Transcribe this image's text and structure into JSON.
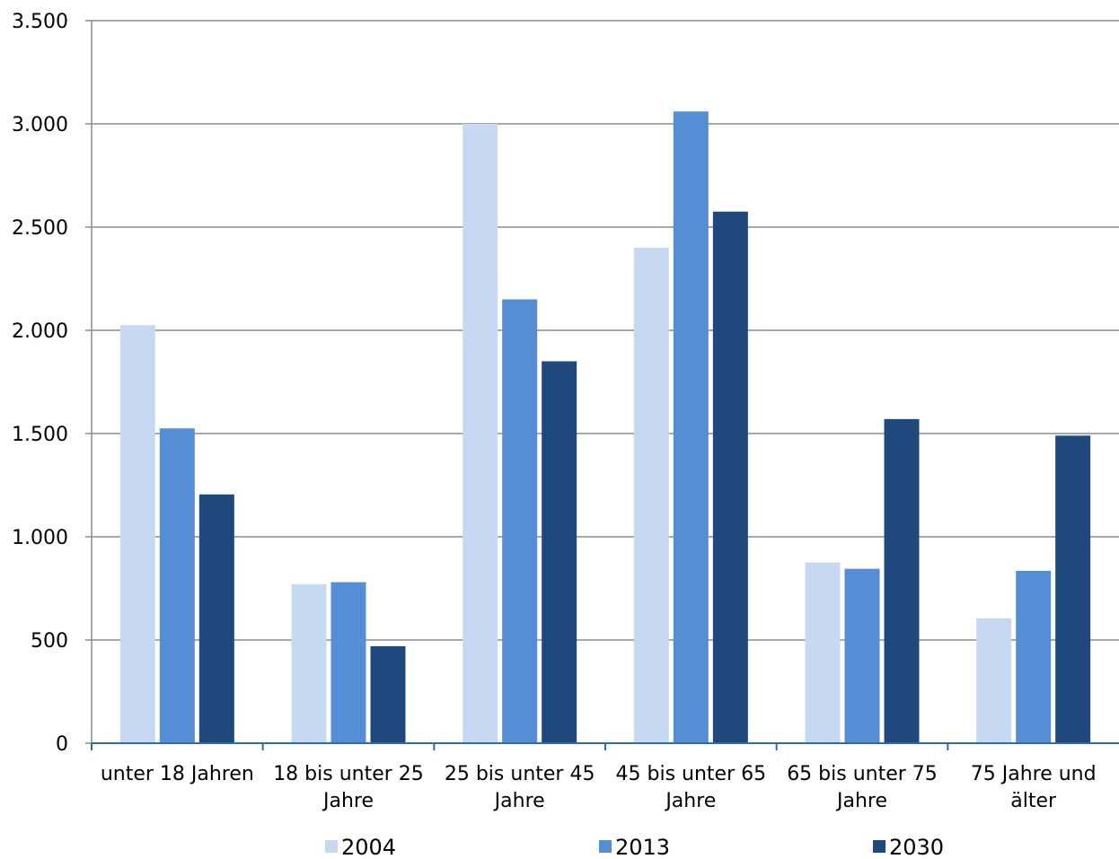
{
  "chart_data": {
    "type": "bar",
    "categories": [
      [
        "unter 18 Jahren"
      ],
      [
        "18 bis unter 25",
        "Jahre"
      ],
      [
        "25 bis unter 45",
        "Jahre"
      ],
      [
        "45 bis unter 65",
        "Jahre"
      ],
      [
        "65 bis unter 75",
        "Jahre"
      ],
      [
        "75 Jahre und",
        "älter"
      ]
    ],
    "series": [
      {
        "name": "2004",
        "color": "#c6d9f1",
        "values": [
          2025,
          770,
          3000,
          2400,
          875,
          605
        ]
      },
      {
        "name": "2013",
        "color": "#558ed5",
        "values": [
          1525,
          780,
          2150,
          3060,
          845,
          835
        ]
      },
      {
        "name": "2030",
        "color": "#1f497d",
        "values": [
          1205,
          470,
          1850,
          2575,
          1570,
          1490
        ]
      }
    ],
    "ylim": [
      0,
      3500
    ],
    "yticks": [
      0,
      500,
      1000,
      1500,
      2000,
      2500,
      3000,
      3500
    ],
    "ytick_labels": [
      "0",
      "500",
      "1.000",
      "1.500",
      "2.000",
      "2.500",
      "3.000",
      "3.500"
    ],
    "grid": true,
    "legend_position": "bottom",
    "title": "",
    "xlabel": "",
    "ylabel": ""
  }
}
